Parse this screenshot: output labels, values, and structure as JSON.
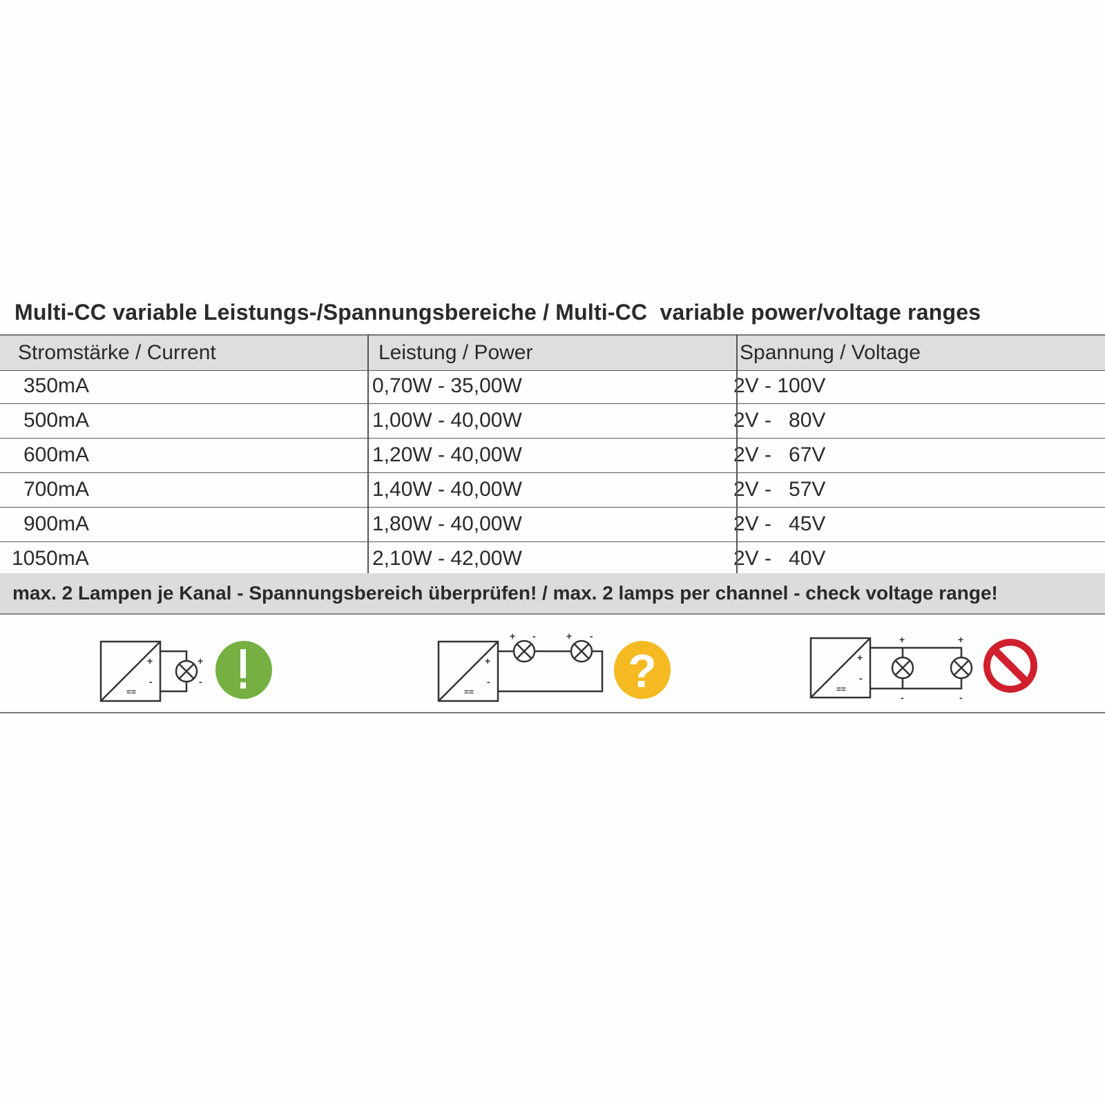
{
  "title": "Multi-CC variable Leistungs-/Spannungsbereiche / Multi-CC  variable power/voltage ranges",
  "table": {
    "headers": [
      "Stromstärke / Current",
      "Leistung / Power",
      "Spannung / Voltage"
    ],
    "rows": [
      [
        "350mA",
        "0,70W - 35,00W",
        "2V - 100V"
      ],
      [
        "500mA",
        "1,00W - 40,00W",
        "2V -   80V"
      ],
      [
        "600mA",
        "1,20W - 40,00W",
        "2V -   67V"
      ],
      [
        "700mA",
        "1,40W - 40,00W",
        "2V -   57V"
      ],
      [
        "900mA",
        "1,80W - 40,00W",
        "2V -   45V"
      ],
      [
        "1050mA",
        "2,10W - 42,00W",
        "2V -   40V"
      ]
    ]
  },
  "warning": "max. 2 Lampen je Kanal - Spannungsbereich überprüfen! / max. 2 lamps per channel - check voltage range!",
  "diagrams": [
    {
      "name": "single-lamp",
      "status_icon": "exclamation-icon",
      "color": "#76b043"
    },
    {
      "name": "two-lamps-series",
      "status_icon": "question-icon",
      "color": "#f5b921"
    },
    {
      "name": "two-lamps-parallel",
      "status_icon": "prohibited-icon",
      "color": "#d0202e"
    }
  ]
}
